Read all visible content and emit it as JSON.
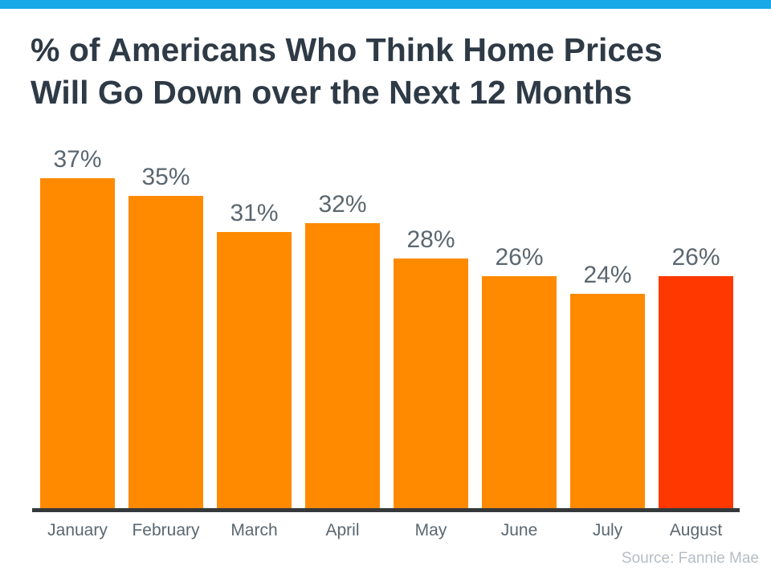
{
  "title_lines": [
    "% of Americans Who Think Home Prices",
    "Will Go Down over the Next 12 Months"
  ],
  "source": "Source: Fannie Mae",
  "colors": {
    "accent_bar": "#18A9E8",
    "title_text": "#2E3A46",
    "value_label": "#5B6770",
    "month_label": "#5B6770",
    "source_text": "#B6BDC4"
  },
  "chart_data": {
    "type": "bar",
    "title": "% of Americans Who Think Home Prices Will Go Down over the Next 12 Months",
    "categories": [
      "January",
      "February",
      "March",
      "April",
      "May",
      "June",
      "July",
      "August"
    ],
    "values": [
      37,
      35,
      31,
      32,
      28,
      26,
      24,
      26
    ],
    "value_labels": [
      "37%",
      "35%",
      "31%",
      "32%",
      "28%",
      "26%",
      "24%",
      "26%"
    ],
    "unit": "%",
    "xlabel": "",
    "ylabel": "",
    "ylim": [
      0,
      37
    ],
    "grid": false,
    "legend": "none",
    "bar_color": "#FF8A00",
    "highlight_color": "#FF3800",
    "highlight_index": 7,
    "axis_color": "#36393B",
    "source": "Source: Fannie Mae"
  }
}
